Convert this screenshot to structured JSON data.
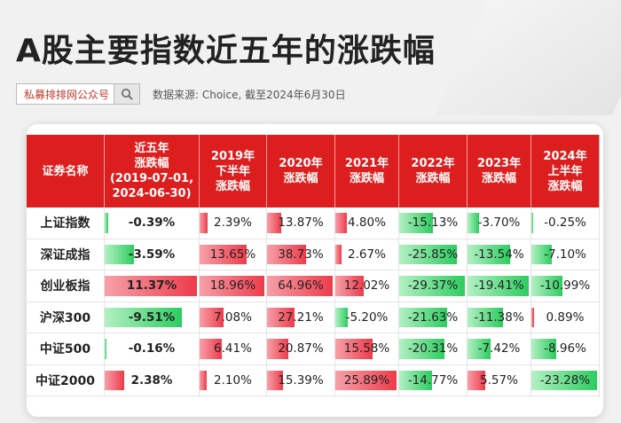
{
  "header": {
    "title": "A股主要指数近五年的涨跌幅",
    "search_text": "私募排排网公众号",
    "source": "数据来源: Choice, 截至2024年6月30日"
  },
  "table": {
    "columns": [
      "证券名称",
      "近五年\n涨跌幅\n(2019-07-01,\n2024-06-30)",
      "2019年\n下半年\n涨跌幅",
      "2020年\n涨跌幅",
      "2021年\n涨跌幅",
      "2022年\n涨跌幅",
      "2023年\n涨跌幅",
      "2024年\n上半年\n涨跌幅"
    ],
    "rows": [
      {
        "name": "上证指数",
        "values": [
          -0.39,
          2.39,
          13.87,
          4.8,
          -15.13,
          -3.7,
          -0.25
        ]
      },
      {
        "name": "深证成指",
        "values": [
          -3.59,
          13.65,
          38.73,
          2.67,
          -25.85,
          -13.54,
          -7.1
        ]
      },
      {
        "name": "创业板指",
        "values": [
          11.37,
          18.96,
          64.96,
          12.02,
          -29.37,
          -19.41,
          -10.99
        ]
      },
      {
        "name": "沪深300",
        "values": [
          -9.51,
          7.08,
          27.21,
          -5.2,
          -21.63,
          -11.38,
          0.89
        ]
      },
      {
        "name": "中证500",
        "values": [
          -0.16,
          6.41,
          20.87,
          15.58,
          -20.31,
          -7.42,
          -8.96
        ]
      },
      {
        "name": "中证2000",
        "values": [
          2.38,
          2.1,
          15.39,
          25.89,
          -14.77,
          5.57,
          -23.28
        ]
      }
    ]
  },
  "colors": {
    "header_bg": "#dc1e1e",
    "positive": "#ee3b4a",
    "negative": "#2ccd5f"
  }
}
